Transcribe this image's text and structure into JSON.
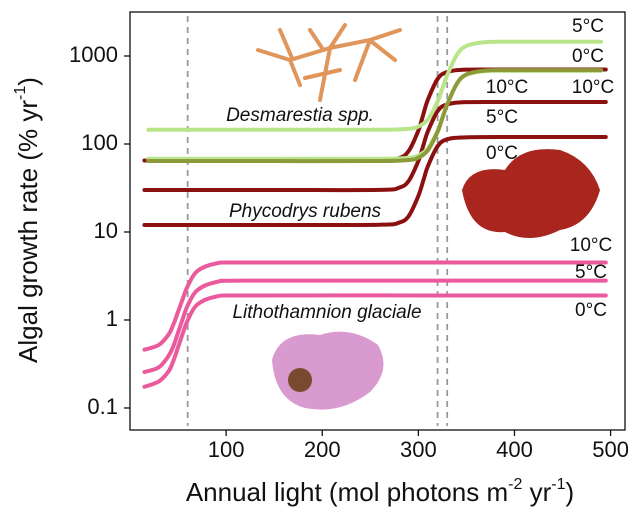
{
  "chart_data": {
    "type": "line",
    "x_label": [
      "Annual light (mol photons m",
      "-2",
      " yr",
      "-1",
      ")"
    ],
    "y_label": [
      "Algal growth rate (% yr",
      "-1",
      ")"
    ],
    "xlim": [
      0,
      515
    ],
    "xticks": [
      100,
      200,
      300,
      400,
      500
    ],
    "ylim": [
      0.0562,
      3162
    ],
    "yticks": [
      0.1,
      1,
      10,
      100,
      1000
    ],
    "log_y": true,
    "vlines": [
      60,
      320,
      330
    ],
    "groups": [
      "Desmarestia spp.",
      "Phycodrys rubens",
      "Lithothamnion glaciale"
    ],
    "series": [
      {
        "name": "10°C",
        "color": "#8b1010",
        "x": [
          15,
          150,
          260,
          280,
          290,
          300,
          305,
          310,
          320,
          330,
          350,
          400,
          495
        ],
        "values": [
          65,
          65,
          65.3,
          69.3,
          83.5,
          142,
          214,
          320,
          547,
          657,
          699,
          702,
          702
        ]
      },
      {
        "name": "5°C",
        "color": "#8b1010",
        "x": [
          15,
          150,
          260,
          280,
          290,
          300,
          305,
          310,
          320,
          330,
          350,
          400,
          495
        ],
        "values": [
          30,
          30,
          30.1,
          31.9,
          38.1,
          64,
          95,
          140,
          236,
          282,
          299,
          300,
          300
        ]
      },
      {
        "name": "0°C",
        "color": "#8b1010",
        "x": [
          15,
          150,
          260,
          280,
          290,
          300,
          305,
          310,
          320,
          330,
          350,
          400,
          495
        ],
        "values": [
          12,
          12,
          12.1,
          12.8,
          15.2,
          25.7,
          37.9,
          56.2,
          94.2,
          113,
          119,
          120,
          120
        ]
      },
      {
        "name": "5°C",
        "color": "#b8e58a",
        "x": [
          19,
          150,
          260,
          290,
          300,
          310,
          320,
          325,
          330,
          340,
          350,
          370,
          400,
          490
        ],
        "values": [
          145,
          145,
          145,
          148.8,
          157.9,
          190.7,
          303,
          428,
          605,
          1027,
          1301,
          1437,
          1450,
          1450
        ]
      },
      {
        "name": "0°C",
        "color": "#b8e58a",
        "x": [
          19,
          150,
          260,
          290,
          300,
          310,
          320,
          325,
          330,
          340,
          350,
          370,
          400,
          490
        ],
        "values": [
          68,
          68,
          68,
          69.8,
          74,
          89.4,
          142,
          201,
          284,
          481,
          610,
          674,
          680,
          680
        ]
      },
      {
        "name": "10°C",
        "color": "#8c9a3a",
        "x": [
          19,
          150,
          260,
          290,
          300,
          310,
          320,
          325,
          330,
          340,
          350,
          370,
          400,
          490
        ],
        "values": [
          64,
          64,
          64,
          65.7,
          69.8,
          85.1,
          137,
          196,
          280,
          483,
          618,
          685,
          690,
          690
        ]
      },
      {
        "name": "10°C",
        "color": "#ea5a9c",
        "x": [
          15,
          30,
          40,
          45,
          50,
          55,
          60,
          70,
          90,
          120,
          300,
          495
        ],
        "values": [
          0.46,
          0.52,
          0.68,
          0.88,
          1.24,
          1.75,
          2.42,
          3.6,
          4.4,
          4.5,
          4.5,
          4.5
        ]
      },
      {
        "name": "5°C",
        "color": "#ea5a9c",
        "x": [
          15,
          30,
          40,
          45,
          50,
          55,
          60,
          70,
          90,
          120,
          300,
          495
        ],
        "values": [
          0.256,
          0.29,
          0.39,
          0.5,
          0.72,
          1.04,
          1.46,
          2.18,
          2.7,
          2.8,
          2.8,
          2.8
        ]
      },
      {
        "name": "0°C",
        "color": "#ea5a9c",
        "x": [
          15,
          30,
          40,
          45,
          50,
          55,
          60,
          70,
          90,
          120,
          300,
          495
        ],
        "values": [
          0.174,
          0.2,
          0.26,
          0.34,
          0.49,
          0.71,
          0.99,
          1.5,
          1.85,
          1.9,
          1.9,
          1.9
        ]
      }
    ]
  }
}
